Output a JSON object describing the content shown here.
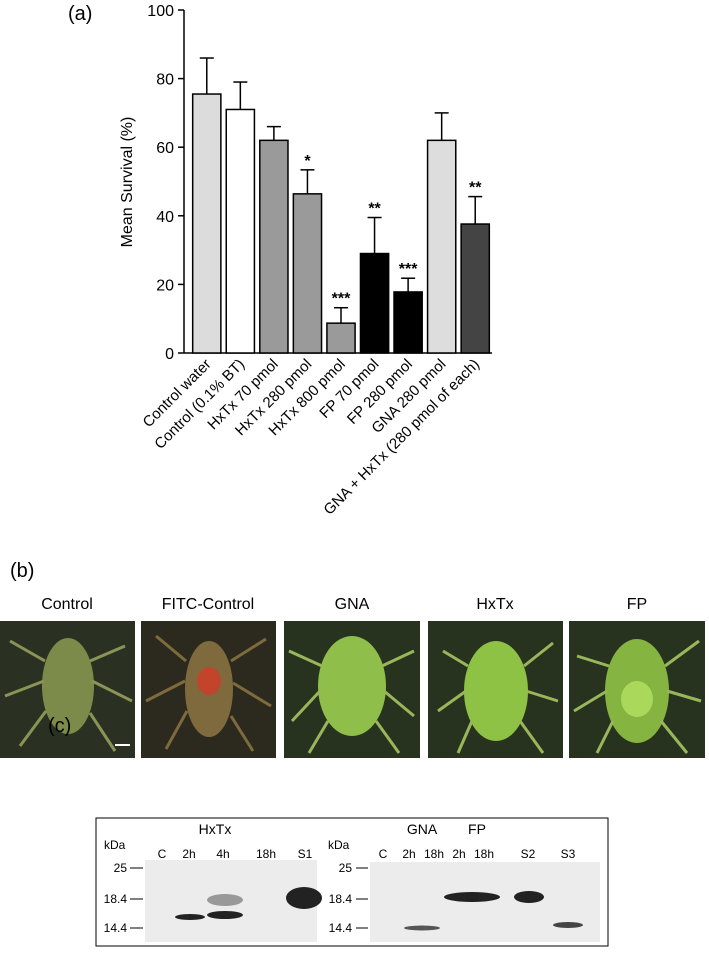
{
  "chart_data": {
    "type": "bar",
    "panel_label": "(a)",
    "y_label": "Mean Survival (%)",
    "categories": [
      "Control water",
      "Control (0.1% BT)",
      "HxTx 70 pmol",
      "HxTx 280 pmol",
      "HxTx 800 pmol",
      "FP 70 pmol",
      "FP 280 pmol",
      "GNA 280 pmol",
      "GNA + HxTx (280 pmol of each)"
    ],
    "values": [
      75.5,
      71,
      62,
      46.4,
      8.7,
      29,
      17.8,
      62,
      37.6
    ],
    "errors": [
      10.5,
      8,
      4,
      7,
      4.5,
      10.5,
      4,
      8,
      8
    ],
    "annotations": [
      null,
      null,
      null,
      "*",
      "***",
      "**",
      "***",
      null,
      "**"
    ],
    "colors": [
      "#dcdcdc",
      "#ffffff",
      "#9a9a9a",
      "#9a9a9a",
      "#9a9a9a",
      "#000000",
      "#000000",
      "#dddddd",
      "#444444"
    ],
    "ylim": [
      0,
      100
    ],
    "yticks": [
      0,
      20,
      40,
      60,
      80,
      100
    ]
  },
  "panel_b": {
    "label": "(b)",
    "images": [
      "Control",
      "FITC-Control",
      "GNA",
      "HxTx",
      "FP"
    ]
  },
  "panel_c": {
    "label": "(c)",
    "left_blot": {
      "title": "HxTx",
      "unit": "kDa",
      "lanes": [
        "C",
        "2h",
        "4h",
        "18h",
        "S1"
      ],
      "markers": [
        "25",
        "18.4",
        "14.4"
      ]
    },
    "right_blot": {
      "titles": [
        "GNA",
        "FP"
      ],
      "unit": "kDa",
      "lanes": [
        "C",
        "2h",
        "18h",
        "2h",
        "18h",
        "S2",
        "S3"
      ],
      "markers": [
        "25",
        "18.4",
        "14.4"
      ]
    }
  }
}
